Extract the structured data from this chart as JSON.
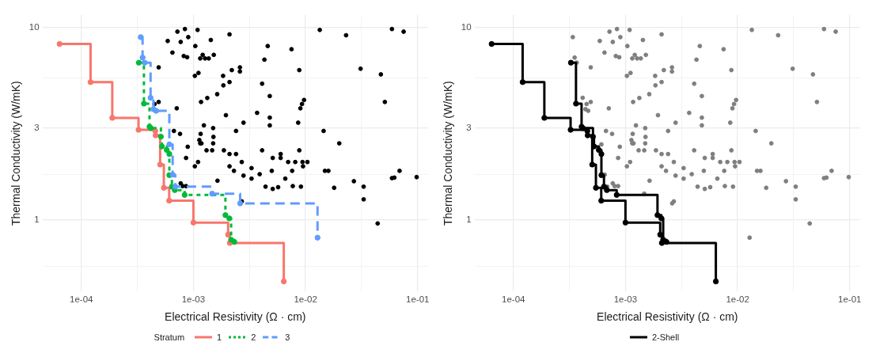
{
  "chart_data": [
    {
      "type": "scatter",
      "xlabel": "Electrical Resistivity (Ω · cm)",
      "ylabel": "Thermal Conductivity (W/mK)",
      "log": "xy",
      "grid": true,
      "legend": "bottom",
      "legend_title": "Stratum",
      "marker": "circle",
      "xlim": [
        4.5e-05,
        0.124
      ],
      "ylim": [
        0.425,
        11.6
      ],
      "xticks": [
        {
          "value": 0.0001,
          "label": "1e-04"
        },
        {
          "value": 0.000316,
          "label": null
        },
        {
          "value": 0.001,
          "label": "1e-03"
        },
        {
          "value": 0.00316,
          "label": null
        },
        {
          "value": 0.01,
          "label": "1e-02"
        },
        {
          "value": 0.0316,
          "label": null
        },
        {
          "value": 0.1,
          "label": "1e-01"
        }
      ],
      "yticks": [
        {
          "value": 0.577,
          "label": null
        },
        1,
        {
          "value": 1.73,
          "label": null
        },
        3,
        {
          "value": 5.48,
          "label": null
        },
        10
      ],
      "series": [
        {
          "type": "scatter",
          "color": "#000000",
          "x": [
            0.00059,
            0.00072,
            0.00077,
            0.00084,
            0.0009,
            0.00065,
            0.00082,
            0.00088,
            0.00109,
            0.00104,
            0.00121,
            0.00115,
            0.00127,
            0.00137,
            0.00152,
            0.00143,
            0.0021,
            0.00049,
            0.00103,
            0.00111,
            0.00184,
            0.0021,
            0.00185,
            0.0022,
            0.0026,
            0.0026,
            0.00117,
            0.00133,
            0.00163,
            0.00045,
            0.00049,
            0.00071,
            0.00195,
            0.00067,
            0.00076,
            0.00124,
            0.0015,
            0.0024,
            0.0028,
            0.00116,
            0.00113,
            0.00115,
            0.00118,
            0.00151,
            0.0015,
            0.00089,
            0.00131,
            0.00147,
            0.00187,
            0.0021,
            0.0024,
            0.00086,
            0.0011,
            0.00103,
            0.0021,
            0.0023,
            0.0027,
            0.0028,
            0.00164,
            0.00077,
            0.0008,
            0.00086,
            0.0027,
            0.0046,
            0.0075,
            0.0043,
            0.0088,
            0.0041,
            0.0048,
            0.0037,
            0.0048,
            0.0048,
            0.0086,
            0.009,
            0.0093,
            0.0097,
            0.0041,
            0.0051,
            0.006,
            0.006,
            0.007,
            0.0081,
            0.0088,
            0.0094,
            0.0104,
            0.0095,
            0.0033,
            0.0033,
            0.0039,
            0.005,
            0.0076,
            0.0066,
            0.0044,
            0.0051,
            0.0057,
            0.0077,
            0.0091,
            0.0134,
            0.023,
            0.059,
            0.075,
            0.031,
            0.047,
            0.051,
            0.0145,
            0.02,
            0.0149,
            0.016,
            0.018,
            0.027,
            0.033,
            0.033,
            0.044,
            0.059,
            0.062,
            0.069,
            0.098
          ],
          "values": [
            8.5,
            9.5,
            8.4,
            9.8,
            8.9,
            7.4,
            7.1,
            7.0,
            9.7,
            8.0,
            7.2,
            6.9,
            6.9,
            6.9,
            7.2,
            8.6,
            9.2,
            6.2,
            5.6,
            5.8,
            5.6,
            5.2,
            5.0,
            6.0,
            6.2,
            5.9,
            4.1,
            4.3,
            4.5,
            4.0,
            4.1,
            3.8,
            3.5,
            2.9,
            2.8,
            3.1,
            3.0,
            2.9,
            3.2,
            2.8,
            2.6,
            2.5,
            2.5,
            2.7,
            2.5,
            2.4,
            2.3,
            2.3,
            2.3,
            2.2,
            2.2,
            2.1,
            2.0,
            1.9,
            1.9,
            1.8,
            2.0,
            1.7,
            1.6,
            1.55,
            1.5,
            1.5,
            1.25,
            8.0,
            7.7,
            6.8,
            6.0,
            5.1,
            4.4,
            3.6,
            3.4,
            3.1,
            3.2,
            3.8,
            4.0,
            4.2,
            2.3,
            2.1,
            2.2,
            2.1,
            2.0,
            2.0,
            2.3,
            2.0,
            2.0,
            1.9,
            1.86,
            1.64,
            1.73,
            1.8,
            1.8,
            1.64,
            1.49,
            1.45,
            1.48,
            1.5,
            1.49,
            9.7,
            9.1,
            9.8,
            9.5,
            6.1,
            5.7,
            4.1,
            2.9,
            2.5,
            1.8,
            1.8,
            1.47,
            1.59,
            1.49,
            1.28,
            0.96,
            1.65,
            1.66,
            1.8,
            1.67
          ]
        },
        {
          "type": "step",
          "name": "1",
          "color": "#f8766d",
          "line_style": "solid",
          "x": [
            6.4e-05,
            0.000121,
            0.000189,
            0.000324,
            0.000457,
            0.00046,
            0.000505,
            0.000545,
            0.000608,
            0.001,
            0.00204,
            0.00211,
            0.0064
          ],
          "values": [
            8.2,
            5.2,
            3.39,
            2.94,
            2.9,
            2.75,
            1.94,
            1.47,
            1.26,
            0.97,
            0.84,
            0.76,
            0.48
          ]
        },
        {
          "type": "step",
          "name": "2",
          "color": "#00ba38",
          "line_style": "dotted",
          "x": [
            0.000326,
            0.000362,
            0.000406,
            0.000417,
            0.000513,
            0.000524,
            0.000578,
            0.00061,
            0.00061,
            0.000643,
            0.000682,
            0.000835,
            0.00193,
            0.00209,
            0.00217,
            0.00232
          ],
          "values": [
            6.56,
            4.02,
            3.05,
            3.0,
            2.71,
            2.41,
            2.31,
            2.2,
            1.71,
            1.49,
            1.43,
            1.35,
            1.06,
            1.02,
            0.79,
            0.77
          ]
        },
        {
          "type": "step",
          "name": "3",
          "color": "#619cff",
          "line_style": "dashed",
          "x": [
            0.000339,
            0.000352,
            0.000367,
            0.000415,
            0.00044,
            0.000465,
            0.00061,
            0.000653,
            0.000689,
            0.00147,
            0.00261,
            0.0128
          ],
          "values": [
            8.9,
            6.97,
            6.56,
            4.31,
            3.76,
            3.69,
            2.47,
            1.72,
            1.49,
            1.37,
            1.22,
            0.81
          ]
        }
      ]
    },
    {
      "type": "scatter",
      "xlabel": "Electrical Resistivity (Ω · cm)",
      "ylabel": "Thermal Conductivity (W/mK)",
      "log": "xy",
      "grid": true,
      "legend": "bottom",
      "marker": "circle",
      "xlim": [
        4.5e-05,
        0.124
      ],
      "ylim": [
        0.425,
        11.6
      ],
      "xticks": [
        {
          "value": 0.0001,
          "label": "1e-04"
        },
        {
          "value": 0.000316,
          "label": null
        },
        {
          "value": 0.001,
          "label": "1e-03"
        },
        {
          "value": 0.00316,
          "label": null
        },
        {
          "value": 0.01,
          "label": "1e-02"
        },
        {
          "value": 0.0316,
          "label": null
        },
        {
          "value": 0.1,
          "label": "1e-01"
        }
      ],
      "yticks": [
        {
          "value": 0.577,
          "label": null
        },
        1,
        {
          "value": 1.73,
          "label": null
        },
        3,
        {
          "value": 5.48,
          "label": null
        },
        10
      ],
      "series": [
        {
          "type": "scatter",
          "color": "#7f7f7f",
          "x": [
            0.00059,
            0.00072,
            0.00077,
            0.00084,
            0.0009,
            0.00065,
            0.00082,
            0.00088,
            0.00109,
            0.00104,
            0.00121,
            0.00115,
            0.00127,
            0.00137,
            0.00152,
            0.00143,
            0.0021,
            0.00049,
            0.00103,
            0.00111,
            0.00184,
            0.0021,
            0.00185,
            0.0022,
            0.0026,
            0.0026,
            0.00117,
            0.00133,
            0.00163,
            0.00045,
            0.00049,
            0.00071,
            0.00195,
            0.00067,
            0.00076,
            0.00124,
            0.0015,
            0.0024,
            0.0028,
            0.00116,
            0.00113,
            0.00115,
            0.00118,
            0.00151,
            0.0015,
            0.00089,
            0.00131,
            0.00147,
            0.00187,
            0.0021,
            0.0024,
            0.00086,
            0.0011,
            0.00103,
            0.0021,
            0.0023,
            0.0027,
            0.0028,
            0.00164,
            0.00077,
            0.0008,
            0.00086,
            0.0027,
            0.0046,
            0.0075,
            0.0043,
            0.0088,
            0.0041,
            0.0048,
            0.0037,
            0.0048,
            0.0048,
            0.0086,
            0.009,
            0.0093,
            0.0097,
            0.0041,
            0.0051,
            0.006,
            0.006,
            0.007,
            0.0081,
            0.0088,
            0.0094,
            0.0104,
            0.0095,
            0.0033,
            0.0033,
            0.0039,
            0.005,
            0.0076,
            0.0066,
            0.0044,
            0.0051,
            0.0057,
            0.0077,
            0.0091,
            0.0134,
            0.023,
            0.059,
            0.075,
            0.031,
            0.047,
            0.051,
            0.0145,
            0.02,
            0.0149,
            0.016,
            0.018,
            0.027,
            0.033,
            0.033,
            0.044,
            0.059,
            0.062,
            0.069,
            0.098,
            0.000339,
            0.000352,
            0.000367,
            0.000415,
            0.00044,
            0.000465,
            0.00061,
            0.000653,
            0.000689,
            0.00147,
            0.00261,
            0.0128
          ],
          "values": [
            8.5,
            9.5,
            8.4,
            9.8,
            8.9,
            7.4,
            7.1,
            7.0,
            9.7,
            8.0,
            7.2,
            6.9,
            6.9,
            6.9,
            7.2,
            8.6,
            9.2,
            6.2,
            5.6,
            5.8,
            5.6,
            5.2,
            5.0,
            6.0,
            6.2,
            5.9,
            4.1,
            4.3,
            4.5,
            4.0,
            4.1,
            3.8,
            3.5,
            2.9,
            2.8,
            3.1,
            3.0,
            2.9,
            3.2,
            2.8,
            2.6,
            2.5,
            2.5,
            2.7,
            2.5,
            2.4,
            2.3,
            2.3,
            2.3,
            2.2,
            2.2,
            2.1,
            2.0,
            1.9,
            1.9,
            1.8,
            2.0,
            1.7,
            1.6,
            1.55,
            1.5,
            1.5,
            1.25,
            8.0,
            7.7,
            6.8,
            6.0,
            5.1,
            4.4,
            3.6,
            3.4,
            3.1,
            3.2,
            3.8,
            4.0,
            4.2,
            2.3,
            2.1,
            2.2,
            2.1,
            2.0,
            2.0,
            2.3,
            2.0,
            2.0,
            1.9,
            1.86,
            1.64,
            1.73,
            1.8,
            1.8,
            1.64,
            1.49,
            1.45,
            1.48,
            1.5,
            1.49,
            9.7,
            9.1,
            9.8,
            9.5,
            6.1,
            5.7,
            4.1,
            2.9,
            2.5,
            1.8,
            1.8,
            1.47,
            1.59,
            1.49,
            1.28,
            0.96,
            1.65,
            1.66,
            1.8,
            1.67,
            8.9,
            6.97,
            6.56,
            4.31,
            3.76,
            3.69,
            2.47,
            1.72,
            1.49,
            1.37,
            1.22,
            0.81
          ]
        },
        {
          "type": "step",
          "name": "2-Shell",
          "color": "#000000",
          "line_style": "solid",
          "x": [
            6.4e-05,
            0.000121,
            0.000189,
            0.000324,
            0.000457,
            0.00046,
            0.000505,
            0.000545,
            0.000608,
            0.001,
            0.00204,
            0.00211,
            0.0064
          ],
          "values": [
            8.2,
            5.2,
            3.39,
            2.94,
            2.9,
            2.75,
            1.94,
            1.47,
            1.26,
            0.97,
            0.84,
            0.76,
            0.48
          ]
        },
        {
          "type": "step",
          "color": "#000000",
          "line_style": "solid",
          "x": [
            0.000326,
            0.000362,
            0.000406,
            0.000417,
            0.000513,
            0.000524,
            0.000578,
            0.00061,
            0.00061,
            0.000643,
            0.000682,
            0.000835,
            0.00193,
            0.00209,
            0.00217,
            0.00232
          ],
          "values": [
            6.56,
            4.02,
            3.05,
            3.0,
            2.71,
            2.41,
            2.31,
            2.2,
            1.71,
            1.49,
            1.43,
            1.35,
            1.06,
            1.02,
            0.79,
            0.77
          ]
        }
      ]
    }
  ]
}
